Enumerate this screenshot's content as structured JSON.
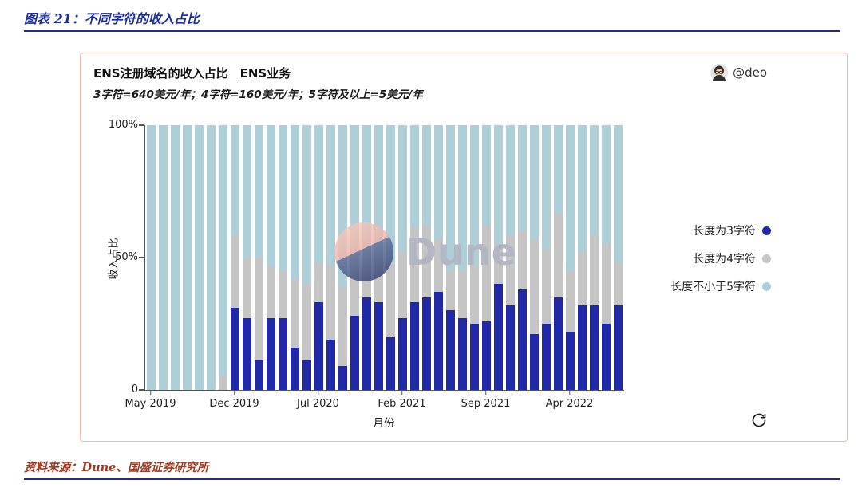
{
  "page": {
    "figure_title": "图表 21：不同字符的收入占比",
    "source_text": "资料来源：Dune、国盛证券研究所"
  },
  "card": {
    "title": "ENS注册域名的收入占比　ENS业务",
    "subtitle": "3字符=640美元/年；4字符=160美元/年；5字符及以上=5美元/年",
    "author": "@deo",
    "watermark_text": "Dune"
  },
  "icons": {
    "avatar": "user-avatar",
    "refresh": "refresh-icon"
  },
  "colors": {
    "title_blue": "#1b2f9e",
    "rule_navy": "#232e7a",
    "source_red": "#9e3a22",
    "card_border": "#f4b9ab",
    "bar_blue": "#2129a8",
    "bar_gray": "#c5c5c5",
    "bar_lightblue": "#aecfd8"
  },
  "chart_data": {
    "type": "bar",
    "stacked": true,
    "normalized_percent": true,
    "title": "ENS注册域名的收入占比 ENS业务",
    "xlabel": "月份",
    "ylabel": "收入占比",
    "ylim": [
      0,
      100
    ],
    "y_ticks": [
      "100%",
      "50%",
      "0"
    ],
    "x_tick_labels": [
      "May 2019",
      "Dec 2019",
      "Jul 2020",
      "Feb 2021",
      "Sep 2021",
      "Apr 2022"
    ],
    "x_tick_indices": [
      0,
      7,
      14,
      21,
      28,
      35
    ],
    "legend_position": "right",
    "grid": false,
    "categories": [
      "May 2019",
      "Jun 2019",
      "Jul 2019",
      "Aug 2019",
      "Sep 2019",
      "Oct 2019",
      "Nov 2019",
      "Dec 2019",
      "Jan 2020",
      "Feb 2020",
      "Mar 2020",
      "Apr 2020",
      "May 2020",
      "Jun 2020",
      "Jul 2020",
      "Aug 2020",
      "Sep 2020",
      "Oct 2020",
      "Nov 2020",
      "Dec 2020",
      "Jan 2021",
      "Feb 2021",
      "Mar 2021",
      "Apr 2021",
      "May 2021",
      "Jun 2021",
      "Jul 2021",
      "Aug 2021",
      "Sep 2021",
      "Oct 2021",
      "Nov 2021",
      "Dec 2021",
      "Jan 2022",
      "Feb 2022",
      "Mar 2022",
      "Apr 2022",
      "May 2022",
      "Jun 2022",
      "Jul 2022",
      "Aug 2022"
    ],
    "series": [
      {
        "name": "长度为3字符",
        "color": "#2129a8",
        "values": [
          0,
          0,
          0,
          0,
          0,
          0,
          0,
          31,
          27,
          11,
          27,
          27,
          16,
          11,
          33,
          19,
          9,
          28,
          35,
          33,
          20,
          27,
          33,
          35,
          37,
          30,
          27,
          25,
          26,
          40,
          32,
          38,
          21,
          25,
          35,
          22,
          32,
          32,
          25,
          32
        ]
      },
      {
        "name": "长度为4字符",
        "color": "#c5c5c5",
        "values": [
          0,
          0,
          0,
          0,
          0,
          0,
          5,
          27,
          23,
          39,
          20,
          18,
          26,
          29,
          15,
          28,
          30,
          25,
          18,
          20,
          28,
          25,
          28,
          27,
          20,
          15,
          18,
          22,
          36,
          15,
          26,
          22,
          36,
          28,
          32,
          23,
          20,
          26,
          30,
          16
        ]
      },
      {
        "name": "长度不小于5字符",
        "color": "#aecfd8",
        "values": [
          100,
          100,
          100,
          100,
          100,
          100,
          95,
          42,
          50,
          50,
          53,
          55,
          58,
          60,
          52,
          53,
          61,
          47,
          47,
          47,
          52,
          48,
          39,
          38,
          43,
          55,
          55,
          53,
          38,
          45,
          42,
          40,
          43,
          47,
          33,
          55,
          48,
          42,
          45,
          52
        ]
      }
    ]
  }
}
